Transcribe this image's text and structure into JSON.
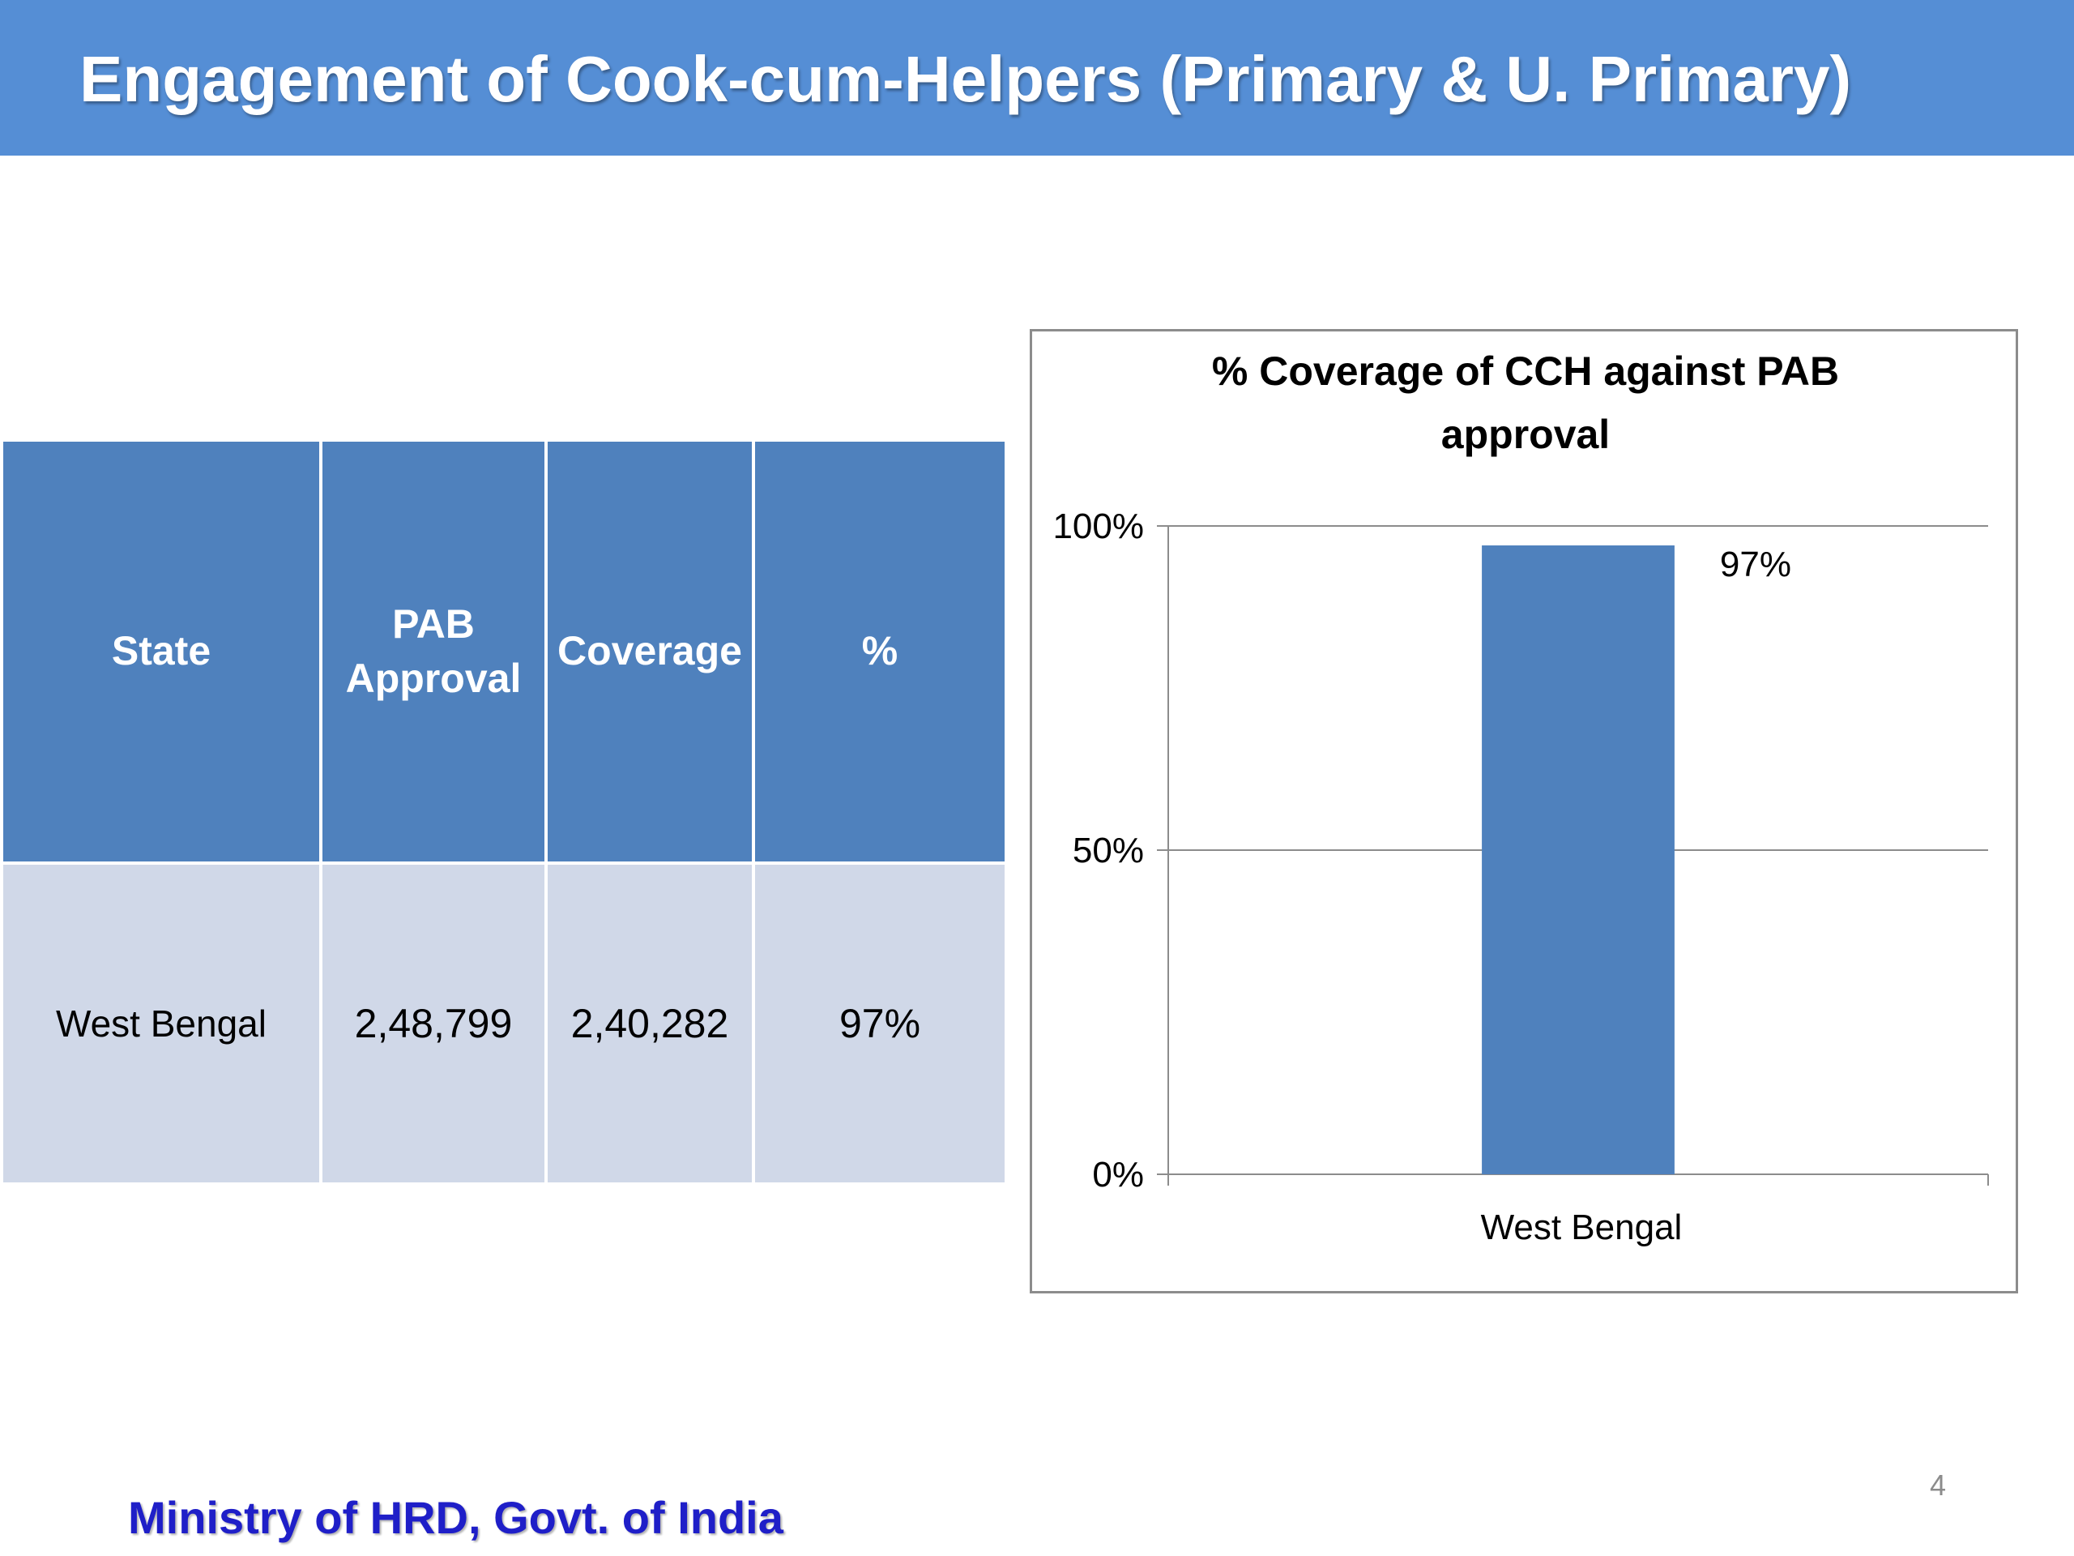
{
  "slide": {
    "title": "Engagement of Cook-cum-Helpers (Primary & U. Primary)",
    "footer": "Ministry of HRD, Govt. of India",
    "page_number": "4",
    "colors": {
      "title_bar": "#558ED5",
      "table_header": "#4F81BD",
      "table_body": "#D0D8E8",
      "bar": "#4F81BD",
      "footer_text": "#1F1FC8"
    }
  },
  "table": {
    "headers": [
      "State",
      "PAB Approval",
      "Coverage",
      "%"
    ],
    "rows": [
      [
        "West Bengal",
        "2,48,799",
        "2,40,282",
        "97%"
      ]
    ]
  },
  "chart_data": {
    "type": "bar",
    "title": "% Coverage of CCH against PAB approval",
    "categories": [
      "West Bengal"
    ],
    "values": [
      0.97
    ],
    "data_labels": [
      "97%"
    ],
    "ylim": [
      0,
      1
    ],
    "yticks": [
      0,
      0.5,
      1
    ],
    "ytick_labels": [
      "0%",
      "50%",
      "100%"
    ],
    "xlabel": "",
    "ylabel": "",
    "grid": true,
    "legend": "none"
  }
}
